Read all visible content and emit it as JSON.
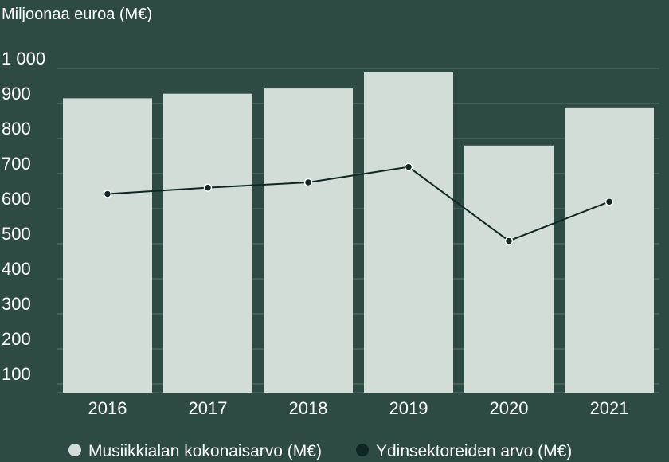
{
  "colors": {
    "background": "#2d4a43",
    "bar": "#d2ddd7",
    "line": "#0f2622",
    "marker": "#0f2622",
    "grid": "#5d7670",
    "text": "#ffffff"
  },
  "chart_data": {
    "type": "bar",
    "ylabel": "Miljoonaa euroa (M€)",
    "ylim": [
      75,
      1000
    ],
    "yticks": [
      100,
      200,
      300,
      400,
      500,
      600,
      700,
      800,
      900,
      1000
    ],
    "ytick_labels": [
      "100",
      "200",
      "300",
      "400",
      "500",
      "600",
      "700",
      "800",
      "900",
      "1 000"
    ],
    "categories": [
      "2016",
      "2017",
      "2018",
      "2019",
      "2020",
      "2021"
    ],
    "series": [
      {
        "name": "Musiikkialan kokonaisarvo (M€)",
        "type": "bar",
        "values": [
          915,
          928,
          943,
          989,
          780,
          889
        ]
      },
      {
        "name": "Ydinsektoreiden arvo (M€)",
        "type": "line",
        "values": [
          642,
          660,
          675,
          719,
          508,
          620
        ]
      }
    ],
    "grid": true,
    "legend": "bottom-center"
  }
}
